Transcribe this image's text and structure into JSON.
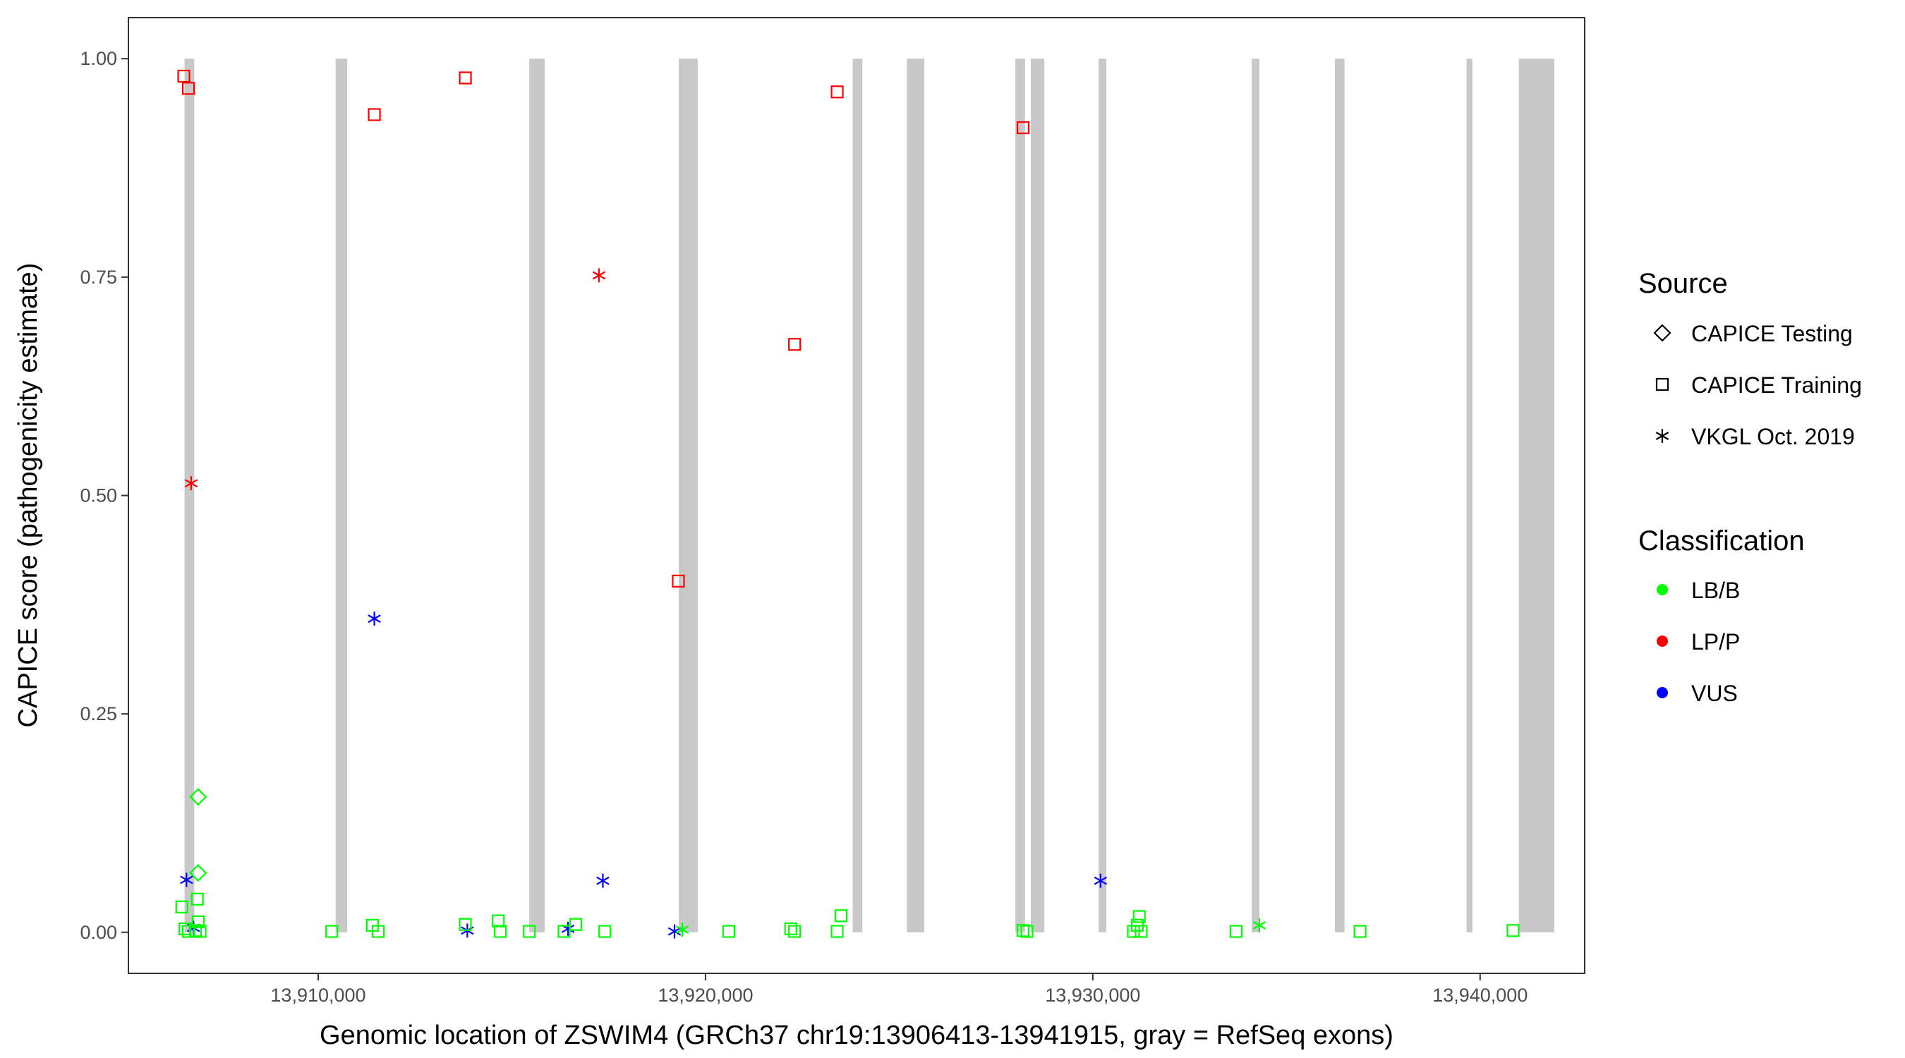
{
  "chart_data": {
    "type": "scatter",
    "xlabel": "Genomic location of ZSWIM4 (GRCh37 chr19:13906413-13941915, gray = RefSeq exons)",
    "ylabel": "CAPICE score (pathogenicity estimate)",
    "xlim": [
      13905100,
      13942700
    ],
    "ylim": [
      -0.047,
      1.047
    ],
    "x_ticks": [
      13910000,
      13920000,
      13930000,
      13940000
    ],
    "x_tick_labels": [
      "13,910,000",
      "13,920,000",
      "13,930,000",
      "13,940,000"
    ],
    "y_ticks": [
      0,
      0.25,
      0.5,
      0.75,
      1.0
    ],
    "y_tick_labels": [
      "0.00",
      "0.25",
      "0.50",
      "0.75",
      "1.00"
    ],
    "grid": false,
    "exons": [
      {
        "start": 13906550,
        "end": 13906800
      },
      {
        "start": 13910450,
        "end": 13910750
      },
      {
        "start": 13915450,
        "end": 13915850
      },
      {
        "start": 13919310,
        "end": 13919800
      },
      {
        "start": 13923800,
        "end": 13924050
      },
      {
        "start": 13925200,
        "end": 13925650
      },
      {
        "start": 13928000,
        "end": 13928250
      },
      {
        "start": 13928400,
        "end": 13928750
      },
      {
        "start": 13930150,
        "end": 13930350
      },
      {
        "start": 13934100,
        "end": 13934300
      },
      {
        "start": 13936250,
        "end": 13936500
      },
      {
        "start": 13939650,
        "end": 13939800
      },
      {
        "start": 13941000,
        "end": 13941915
      }
    ],
    "legend": {
      "position": "right",
      "shape_title": "Source",
      "shapes": [
        {
          "label": "CAPICE Testing",
          "shape": "diamond"
        },
        {
          "label": "CAPICE Training",
          "shape": "square"
        },
        {
          "label": "VKGL Oct. 2019",
          "shape": "asterisk"
        }
      ],
      "color_title": "Classification",
      "colors": [
        {
          "label": "LB/B",
          "color": "#00ff00"
        },
        {
          "label": "LP/P",
          "color": "#ff0000"
        },
        {
          "label": "VUS",
          "color": "#0000ff"
        }
      ]
    },
    "points": [
      {
        "x": 13906530,
        "y": 0.98,
        "shape": "square",
        "class": "LP/P"
      },
      {
        "x": 13906650,
        "y": 0.966,
        "shape": "square",
        "class": "LP/P"
      },
      {
        "x": 13911450,
        "y": 0.936,
        "shape": "square",
        "class": "LP/P"
      },
      {
        "x": 13913800,
        "y": 0.978,
        "shape": "square",
        "class": "LP/P"
      },
      {
        "x": 13923400,
        "y": 0.962,
        "shape": "square",
        "class": "LP/P"
      },
      {
        "x": 13928200,
        "y": 0.921,
        "shape": "square",
        "class": "LP/P"
      },
      {
        "x": 13917250,
        "y": 0.752,
        "shape": "asterisk",
        "class": "LP/P"
      },
      {
        "x": 13922300,
        "y": 0.673,
        "shape": "square",
        "class": "LP/P"
      },
      {
        "x": 13906720,
        "y": 0.514,
        "shape": "asterisk",
        "class": "LP/P"
      },
      {
        "x": 13919300,
        "y": 0.402,
        "shape": "square",
        "class": "LP/P"
      },
      {
        "x": 13911450,
        "y": 0.359,
        "shape": "asterisk",
        "class": "VUS"
      },
      {
        "x": 13906600,
        "y": 0.06,
        "shape": "asterisk",
        "class": "VUS"
      },
      {
        "x": 13917350,
        "y": 0.059,
        "shape": "asterisk",
        "class": "VUS"
      },
      {
        "x": 13930200,
        "y": 0.059,
        "shape": "asterisk",
        "class": "VUS"
      },
      {
        "x": 13906780,
        "y": 0.005,
        "shape": "asterisk",
        "class": "VUS"
      },
      {
        "x": 13913850,
        "y": 0.002,
        "shape": "asterisk",
        "class": "VUS"
      },
      {
        "x": 13916450,
        "y": 0.004,
        "shape": "asterisk",
        "class": "VUS"
      },
      {
        "x": 13919200,
        "y": 0.001,
        "shape": "asterisk",
        "class": "VUS"
      },
      {
        "x": 13906900,
        "y": 0.155,
        "shape": "diamond",
        "class": "LB/B"
      },
      {
        "x": 13906900,
        "y": 0.068,
        "shape": "diamond",
        "class": "LB/B"
      },
      {
        "x": 13906880,
        "y": 0.038,
        "shape": "square",
        "class": "LB/B"
      },
      {
        "x": 13906480,
        "y": 0.029,
        "shape": "square",
        "class": "LB/B"
      },
      {
        "x": 13906900,
        "y": 0.012,
        "shape": "square",
        "class": "LB/B"
      },
      {
        "x": 13906560,
        "y": 0.004,
        "shape": "square",
        "class": "LB/B"
      },
      {
        "x": 13906650,
        "y": 0.001,
        "shape": "square",
        "class": "LB/B"
      },
      {
        "x": 13906830,
        "y": 0.002,
        "shape": "square",
        "class": "LB/B"
      },
      {
        "x": 13906950,
        "y": 0.001,
        "shape": "square",
        "class": "LB/B"
      },
      {
        "x": 13910350,
        "y": 0.001,
        "shape": "square",
        "class": "LB/B"
      },
      {
        "x": 13911400,
        "y": 0.008,
        "shape": "square",
        "class": "LB/B"
      },
      {
        "x": 13911550,
        "y": 0.001,
        "shape": "square",
        "class": "LB/B"
      },
      {
        "x": 13913800,
        "y": 0.009,
        "shape": "square",
        "class": "LB/B"
      },
      {
        "x": 13914650,
        "y": 0.013,
        "shape": "square",
        "class": "LB/B"
      },
      {
        "x": 13914700,
        "y": 0.001,
        "shape": "square",
        "class": "LB/B"
      },
      {
        "x": 13915450,
        "y": 0.001,
        "shape": "square",
        "class": "LB/B"
      },
      {
        "x": 13916350,
        "y": 0.001,
        "shape": "square",
        "class": "LB/B"
      },
      {
        "x": 13916650,
        "y": 0.009,
        "shape": "square",
        "class": "LB/B"
      },
      {
        "x": 13917400,
        "y": 0.001,
        "shape": "square",
        "class": "LB/B"
      },
      {
        "x": 13919400,
        "y": 0.003,
        "shape": "asterisk",
        "class": "LB/B"
      },
      {
        "x": 13920600,
        "y": 0.001,
        "shape": "square",
        "class": "LB/B"
      },
      {
        "x": 13922200,
        "y": 0.004,
        "shape": "square",
        "class": "LB/B"
      },
      {
        "x": 13922300,
        "y": 0.001,
        "shape": "square",
        "class": "LB/B"
      },
      {
        "x": 13923400,
        "y": 0.001,
        "shape": "square",
        "class": "LB/B"
      },
      {
        "x": 13923500,
        "y": 0.019,
        "shape": "square",
        "class": "LB/B"
      },
      {
        "x": 13928200,
        "y": 0.002,
        "shape": "square",
        "class": "LB/B"
      },
      {
        "x": 13928300,
        "y": 0.001,
        "shape": "square",
        "class": "LB/B"
      },
      {
        "x": 13931200,
        "y": 0.018,
        "shape": "square",
        "class": "LB/B"
      },
      {
        "x": 13931150,
        "y": 0.008,
        "shape": "square",
        "class": "LB/B"
      },
      {
        "x": 13931050,
        "y": 0.001,
        "shape": "square",
        "class": "LB/B"
      },
      {
        "x": 13931250,
        "y": 0.001,
        "shape": "square",
        "class": "LB/B"
      },
      {
        "x": 13933700,
        "y": 0.001,
        "shape": "square",
        "class": "LB/B"
      },
      {
        "x": 13934300,
        "y": 0.008,
        "shape": "asterisk",
        "class": "LB/B"
      },
      {
        "x": 13936900,
        "y": 0.001,
        "shape": "square",
        "class": "LB/B"
      },
      {
        "x": 13940850,
        "y": 0.002,
        "shape": "square",
        "class": "LB/B"
      }
    ]
  }
}
